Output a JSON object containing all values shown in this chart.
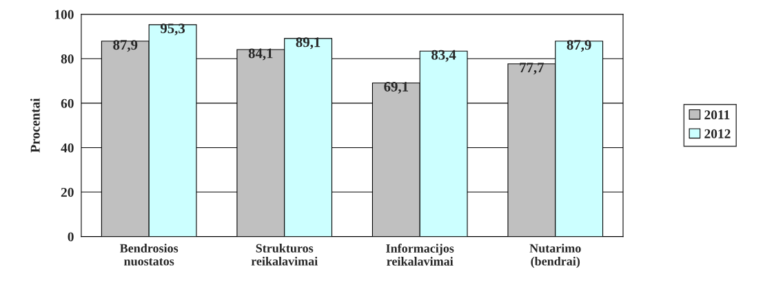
{
  "chart_data": {
    "type": "bar",
    "ylabel": "Procentai",
    "categories": [
      "Bendrosios\nnuostatos",
      "Strukturos\nreikalavimai",
      "Informacijos\nreikalavimai",
      "Nutarimo\n(bendrai)"
    ],
    "series": [
      {
        "name": "2011",
        "color": "#c0c0c0",
        "values": [
          87.9,
          84.1,
          69.1,
          77.7
        ],
        "value_labels": [
          "87,9",
          "84,1",
          "69,1",
          "77,7"
        ]
      },
      {
        "name": "2012",
        "color": "#ccffff",
        "values": [
          95.3,
          89.1,
          83.4,
          87.9
        ],
        "value_labels": [
          "95,3",
          "89,1",
          "83,4",
          "87,9"
        ]
      }
    ],
    "ylim": [
      0,
      100
    ],
    "yticks": [
      0,
      20,
      40,
      60,
      80,
      100
    ],
    "grid": "y",
    "legend": "right"
  }
}
